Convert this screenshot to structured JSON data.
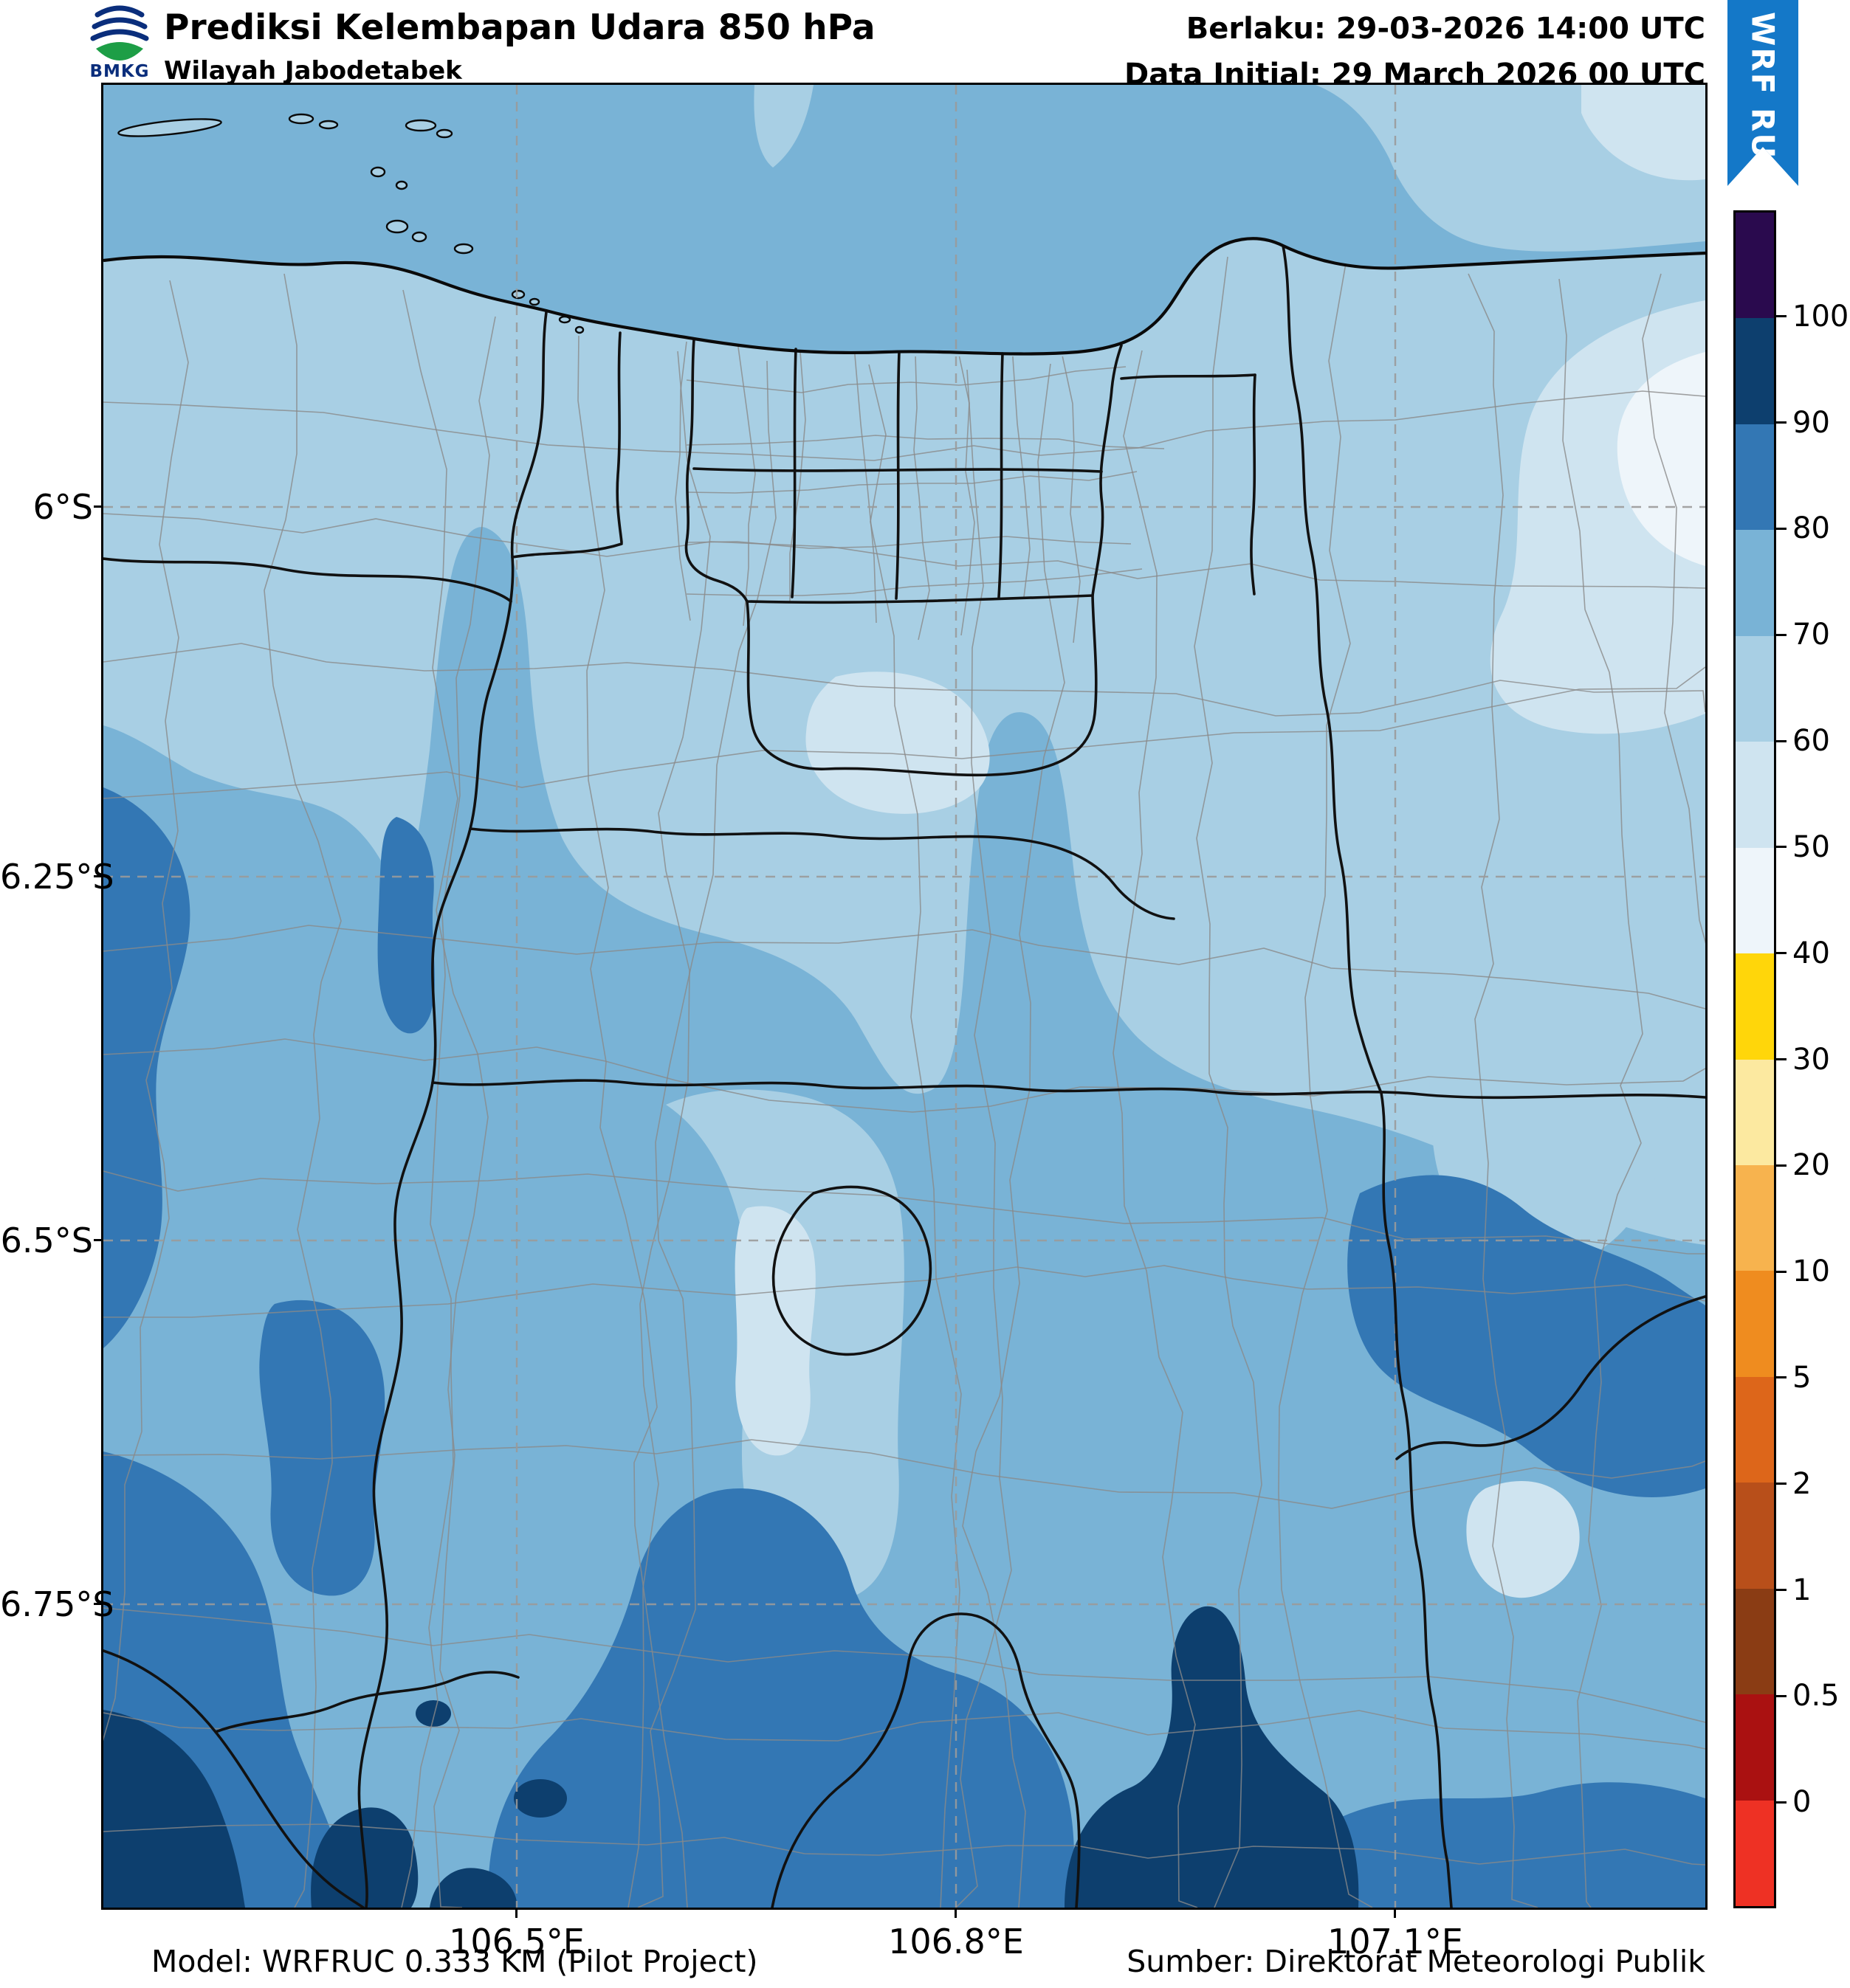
{
  "header": {
    "logo_text": "BMKG",
    "title": "Prediksi Kelembapan Udara 850 hPa",
    "subtitle": "Wilayah Jabodetabek",
    "valid_line": "Berlaku: 29-03-2026 14:00 UTC",
    "initial_line": "Data Initial: 29 March 2026 00 UTC",
    "model_tag": "WRF RUC"
  },
  "map": {
    "y_ticks": [
      "6°S",
      "6.25°S",
      "6.5°S",
      "6.75°S"
    ],
    "x_ticks": [
      "106.5°E",
      "106.8°E",
      "107.1°E"
    ]
  },
  "colorbar": {
    "tick_labels": [
      "100",
      "90",
      "80",
      "70",
      "60",
      "50",
      "40",
      "30",
      "20",
      "10",
      "5",
      "2",
      "1",
      "0.5",
      "0"
    ],
    "segment_colors_top_to_bottom": [
      "#2a0a4e",
      "#0d3f6e",
      "#3377b4",
      "#79b3d6",
      "#a8cfe4",
      "#cfe4f0",
      "#eef5fa",
      "#ffd60a",
      "#fce9a0",
      "#f7b34e",
      "#ef8c1f",
      "#dd661a",
      "#b84f1a",
      "#8a3c14",
      "#aa1111",
      "#ee3124"
    ]
  },
  "footer": {
    "model": "Model: WRFRUC 0.333 KM (Pilot Project)",
    "source": "Sumber: Direktorat Meteorologi Publik"
  },
  "palette": {
    "ribbon": "#1478c8",
    "grid": "#9a9a9a",
    "district_line": "#8a8a8a",
    "admin_line": "#111111",
    "logo_blue": "#0a2e7c",
    "logo_green": "#1d9e46",
    "rh40_50": "#eef5fa",
    "rh50_60": "#cfe4f0",
    "rh60_70": "#a8cfe4",
    "rh70_80": "#79b3d6",
    "rh80_90": "#3377b4",
    "rh90_100": "#0d3f6e"
  }
}
